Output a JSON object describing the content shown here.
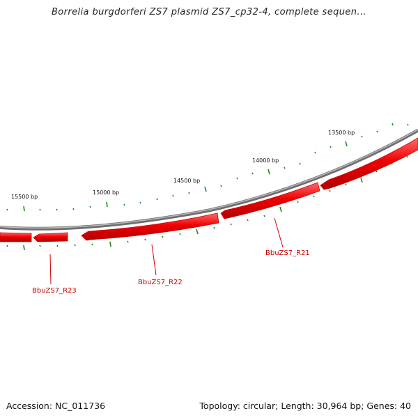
{
  "title": "Borrelia burgdorferi ZS7 plasmid ZS7_cp32-4, complete sequen...",
  "footer": {
    "accession": "Accession: NC_011736",
    "summary": "Topology: circular; Length: 30,964 bp; Genes: 40"
  },
  "colors": {
    "backbone": "#8a8a8a",
    "gene_fill": "#e60000",
    "gene_highlight": "#ff5050",
    "tick": "#1a8a1a",
    "gene_label": "#cc0000"
  },
  "bp_labels": [
    "13500 bp",
    "14000 bp",
    "14500 bp",
    "15000 bp",
    "15500 bp"
  ],
  "gene_labels": [
    "BbuZS7_R21",
    "BbuZS7_R22",
    "BbuZS7_R23"
  ]
}
